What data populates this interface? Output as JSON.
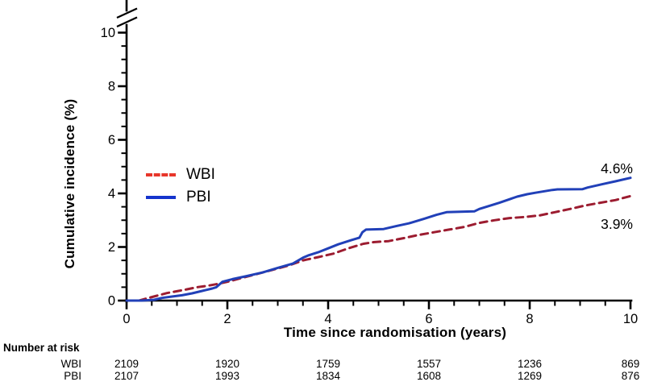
{
  "chart_data": {
    "type": "line",
    "title": "",
    "xlabel": "Time since randomisation (years)",
    "ylabel": "Cumulative incidence (%)",
    "xlim": [
      0,
      10
    ],
    "ylim": [
      0,
      10.8
    ],
    "axis_break_top_of_y_axis": true,
    "grid": false,
    "legend_position": "center-left inside plot",
    "xticks": [
      0,
      2,
      4,
      6,
      8,
      10
    ],
    "yticks": [
      0,
      2,
      4,
      6,
      8,
      10
    ],
    "minor_tick_step": 0.5,
    "series": [
      {
        "name": "WBI",
        "style": "dashed",
        "color": "#9c1c30",
        "legend_color": "#e8362a",
        "end_label": "3.9%",
        "x": [
          0,
          0.25,
          0.4,
          0.6,
          0.8,
          1.0,
          1.2,
          1.4,
          1.6,
          1.8,
          2.0,
          2.3,
          2.6,
          2.9,
          3.2,
          3.5,
          3.8,
          4.1,
          4.4,
          4.7,
          4.9,
          5.2,
          5.5,
          5.8,
          6.1,
          6.4,
          6.7,
          7.0,
          7.3,
          7.6,
          7.9,
          8.2,
          8.5,
          8.8,
          9.1,
          9.4,
          9.7,
          10
        ],
        "y": [
          0,
          0.0,
          0.08,
          0.18,
          0.28,
          0.35,
          0.42,
          0.5,
          0.55,
          0.62,
          0.7,
          0.85,
          1.0,
          1.15,
          1.3,
          1.5,
          1.62,
          1.75,
          1.95,
          2.12,
          2.18,
          2.22,
          2.33,
          2.45,
          2.55,
          2.65,
          2.75,
          2.9,
          3.0,
          3.08,
          3.12,
          3.18,
          3.3,
          3.42,
          3.55,
          3.65,
          3.75,
          3.9
        ]
      },
      {
        "name": "PBI",
        "style": "solid",
        "color": "#2140b8",
        "legend_color": "#1534cd",
        "end_label": "4.6%",
        "x": [
          0,
          0.3,
          0.55,
          0.7,
          0.9,
          1.1,
          1.3,
          1.5,
          1.7,
          1.78,
          1.9,
          2.1,
          2.4,
          2.7,
          3.0,
          3.3,
          3.5,
          3.6,
          3.8,
          4.0,
          4.2,
          4.45,
          4.62,
          4.68,
          4.75,
          5.1,
          5.35,
          5.6,
          5.9,
          6.15,
          6.35,
          6.9,
          7.0,
          7.4,
          7.75,
          7.95,
          8.1,
          8.45,
          8.55,
          9.05,
          9.15,
          9.45,
          9.7,
          10
        ],
        "y": [
          0,
          0.0,
          0.03,
          0.1,
          0.15,
          0.2,
          0.27,
          0.36,
          0.45,
          0.5,
          0.7,
          0.8,
          0.92,
          1.05,
          1.22,
          1.38,
          1.6,
          1.68,
          1.8,
          1.95,
          2.1,
          2.25,
          2.35,
          2.55,
          2.65,
          2.67,
          2.78,
          2.88,
          3.05,
          3.2,
          3.3,
          3.33,
          3.42,
          3.65,
          3.88,
          3.97,
          4.02,
          4.13,
          4.15,
          4.16,
          4.22,
          4.35,
          4.45,
          4.58
        ]
      }
    ],
    "risk_table": {
      "title": "Number at risk",
      "times": [
        0,
        2,
        4,
        6,
        8,
        10
      ],
      "rows": [
        {
          "label": "WBI",
          "values": [
            2109,
            1920,
            1759,
            1557,
            1236,
            869
          ]
        },
        {
          "label": "PBI",
          "values": [
            2107,
            1993,
            1834,
            1608,
            1269,
            876
          ]
        }
      ]
    }
  }
}
